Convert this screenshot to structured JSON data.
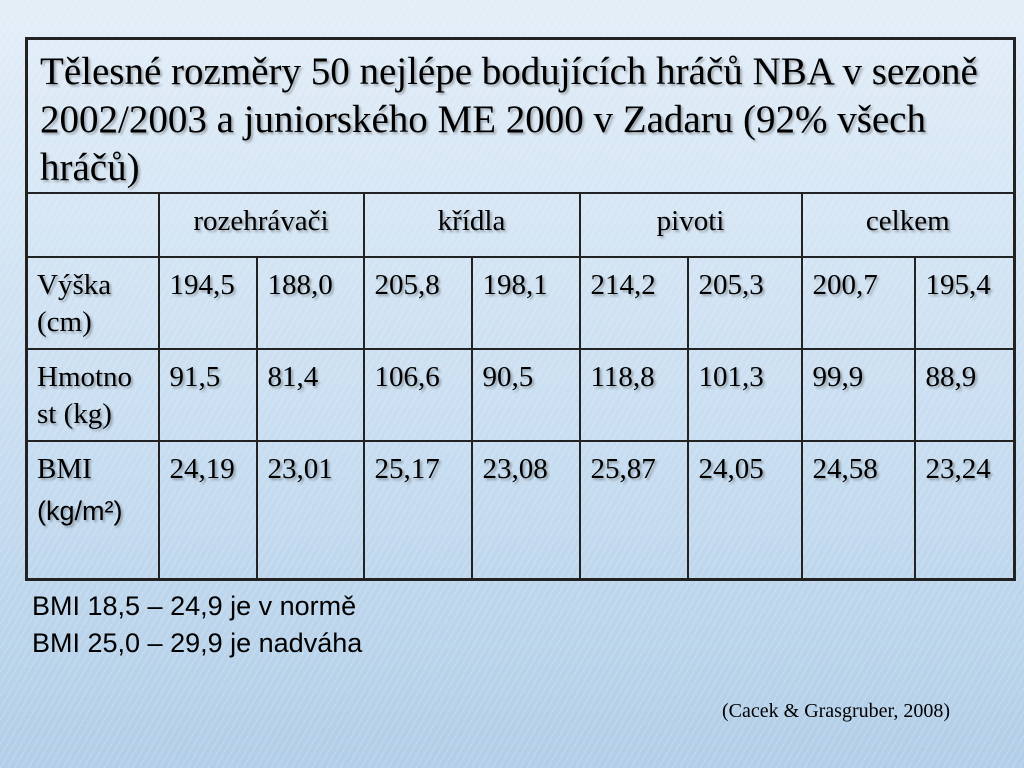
{
  "slide": {
    "title": "Tělesné rozměry 50 nejlépe bodujících hráčů NBA v sezoně 2002/2003 a juniorského ME 2000 v Zadaru (92% všech hráčů)"
  },
  "table": {
    "groups": [
      "rozehrávači",
      "křídla",
      "pivoti",
      "celkem"
    ],
    "rows": [
      {
        "label": [
          "Výška",
          "(cm)"
        ],
        "values": [
          "194,5",
          "188,0",
          "205,8",
          "198,1",
          "214,2",
          "205,3",
          "200,7",
          "195,4"
        ]
      },
      {
        "label": [
          "Hmotno",
          "st (kg)"
        ],
        "values": [
          "91,5",
          "81,4",
          "106,6",
          "90,5",
          "118,8",
          "101,3",
          "99,9",
          "88,9"
        ]
      },
      {
        "label": [
          "BMI",
          "(kg/m²)"
        ],
        "values": [
          "24,19",
          "23,01",
          "25,17",
          "23,08",
          "25,87",
          "24,05",
          "24,58",
          "23,24"
        ]
      }
    ]
  },
  "notes": [
    "BMI 18,5 – 24,9 je v normě",
    "BMI 25,0 – 29,9 je nadváha"
  ],
  "citation": "(Cacek & Grasgruber, 2008)",
  "colors": {
    "background_top": "#e3eef8",
    "background_mid": "#c9def1",
    "background_bottom": "#b2cee8",
    "table_lines": "#222222"
  }
}
